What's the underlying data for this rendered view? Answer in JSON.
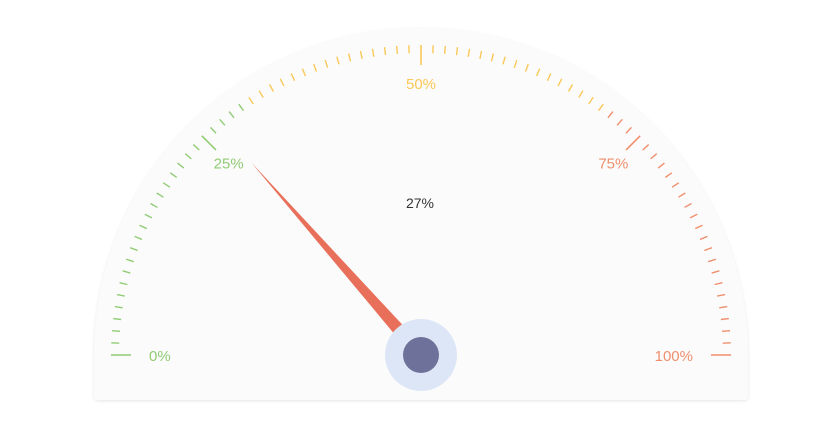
{
  "chart_data": {
    "type": "gauge",
    "value": 27,
    "value_label": "27%",
    "min": 0,
    "max": 100,
    "major_ticks": [
      {
        "value": 0,
        "label": "0%"
      },
      {
        "value": 25,
        "label": "25%"
      },
      {
        "value": 50,
        "label": "50%"
      },
      {
        "value": 75,
        "label": "75%"
      },
      {
        "value": 100,
        "label": "100%"
      }
    ],
    "minor_ticks_per_major": 20,
    "bands": [
      {
        "from": 0,
        "to": 30,
        "color": "#91cc75"
      },
      {
        "from": 30,
        "to": 70,
        "color": "#fac858"
      },
      {
        "from": 70,
        "to": 100,
        "color": "#ef8f6e"
      }
    ],
    "colors": {
      "face": "#fbfbfb",
      "needle": "#e8705a",
      "hub": "#6e7199",
      "hub_halo": "#dde6f6",
      "value_text": "#333333"
    }
  }
}
